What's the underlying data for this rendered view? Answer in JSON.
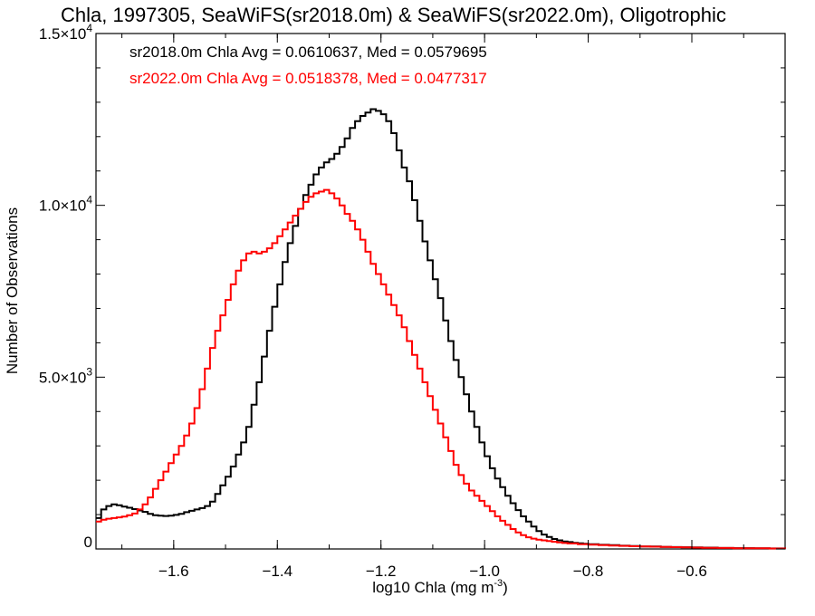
{
  "chart_data": {
    "type": "line",
    "title": "Chla, 1997305, SeaWiFS(sr2018.0m) & SeaWiFS(sr2022.0m), Oligotrophic",
    "xlabel": "log10 Chla (mg m",
    "xlabel_sup": "-3",
    "xlabel_tail": ")",
    "ylabel": "Number of Observations",
    "xlim": [
      -1.75,
      -0.42
    ],
    "ylim": [
      0,
      15000
    ],
    "grid": false,
    "x_ticks": [
      {
        "value": -1.6,
        "label": "−1.6"
      },
      {
        "value": -1.4,
        "label": "−1.4"
      },
      {
        "value": -1.2,
        "label": "−1.2"
      },
      {
        "value": -1.0,
        "label": "−1.0"
      },
      {
        "value": -0.8,
        "label": "−0.8"
      },
      {
        "value": -0.6,
        "label": "−0.6"
      }
    ],
    "y_ticks": [
      {
        "value": 0,
        "mant": "0",
        "exp": ""
      },
      {
        "value": 5000,
        "mant": "5.0×10",
        "exp": "3"
      },
      {
        "value": 10000,
        "mant": "1.0×10",
        "exp": "4"
      },
      {
        "value": 15000,
        "mant": "1.5×10",
        "exp": "4"
      }
    ],
    "annotations": [
      {
        "text": "sr2018.0m Chla Avg = 0.0610637, Med = 0.0579695",
        "color": "#000000"
      },
      {
        "text": "sr2022.0m Chla Avg = 0.0518378, Med = 0.0477317",
        "color": "#ff0000"
      }
    ],
    "series": [
      {
        "color": "#000000",
        "points": [
          [
            -1.75,
            900
          ],
          [
            -1.74,
            1150
          ],
          [
            -1.73,
            1250
          ],
          [
            -1.72,
            1300
          ],
          [
            -1.71,
            1270
          ],
          [
            -1.7,
            1230
          ],
          [
            -1.69,
            1200
          ],
          [
            -1.68,
            1160
          ],
          [
            -1.67,
            1120
          ],
          [
            -1.66,
            1080
          ],
          [
            -1.65,
            1020
          ],
          [
            -1.64,
            980
          ],
          [
            -1.63,
            970
          ],
          [
            -1.62,
            960
          ],
          [
            -1.61,
            970
          ],
          [
            -1.6,
            990
          ],
          [
            -1.59,
            1020
          ],
          [
            -1.58,
            1070
          ],
          [
            -1.57,
            1110
          ],
          [
            -1.56,
            1150
          ],
          [
            -1.55,
            1190
          ],
          [
            -1.54,
            1250
          ],
          [
            -1.53,
            1380
          ],
          [
            -1.52,
            1600
          ],
          [
            -1.51,
            1850
          ],
          [
            -1.5,
            2100
          ],
          [
            -1.49,
            2400
          ],
          [
            -1.48,
            2750
          ],
          [
            -1.47,
            3100
          ],
          [
            -1.46,
            3550
          ],
          [
            -1.45,
            4200
          ],
          [
            -1.44,
            4850
          ],
          [
            -1.43,
            5600
          ],
          [
            -1.42,
            6350
          ],
          [
            -1.41,
            7050
          ],
          [
            -1.4,
            7700
          ],
          [
            -1.39,
            8350
          ],
          [
            -1.38,
            8900
          ],
          [
            -1.37,
            9400
          ],
          [
            -1.36,
            9900
          ],
          [
            -1.35,
            10300
          ],
          [
            -1.34,
            10600
          ],
          [
            -1.33,
            10900
          ],
          [
            -1.32,
            11100
          ],
          [
            -1.31,
            11250
          ],
          [
            -1.3,
            11350
          ],
          [
            -1.29,
            11500
          ],
          [
            -1.28,
            11700
          ],
          [
            -1.27,
            11950
          ],
          [
            -1.26,
            12250
          ],
          [
            -1.25,
            12450
          ],
          [
            -1.24,
            12600
          ],
          [
            -1.23,
            12700
          ],
          [
            -1.22,
            12800
          ],
          [
            -1.21,
            12750
          ],
          [
            -1.2,
            12650
          ],
          [
            -1.19,
            12450
          ],
          [
            -1.18,
            12100
          ],
          [
            -1.17,
            11600
          ],
          [
            -1.16,
            11100
          ],
          [
            -1.15,
            10700
          ],
          [
            -1.14,
            10150
          ],
          [
            -1.13,
            9550
          ],
          [
            -1.12,
            8950
          ],
          [
            -1.11,
            8400
          ],
          [
            -1.1,
            7850
          ],
          [
            -1.09,
            7300
          ],
          [
            -1.08,
            6650
          ],
          [
            -1.07,
            6050
          ],
          [
            -1.06,
            5500
          ],
          [
            -1.05,
            5000
          ],
          [
            -1.04,
            4500
          ],
          [
            -1.03,
            4000
          ],
          [
            -1.02,
            3550
          ],
          [
            -1.01,
            3100
          ],
          [
            -1.0,
            2700
          ],
          [
            -0.99,
            2350
          ],
          [
            -0.98,
            2050
          ],
          [
            -0.97,
            1800
          ],
          [
            -0.96,
            1550
          ],
          [
            -0.95,
            1330
          ],
          [
            -0.94,
            1130
          ],
          [
            -0.93,
            950
          ],
          [
            -0.92,
            800
          ],
          [
            -0.91,
            650
          ],
          [
            -0.9,
            520
          ],
          [
            -0.89,
            420
          ],
          [
            -0.88,
            350
          ],
          [
            -0.87,
            290
          ],
          [
            -0.86,
            250
          ],
          [
            -0.85,
            220
          ],
          [
            -0.84,
            200
          ],
          [
            -0.83,
            180
          ],
          [
            -0.82,
            165
          ],
          [
            -0.81,
            150
          ],
          [
            -0.8,
            140
          ],
          [
            -0.78,
            120
          ],
          [
            -0.76,
            110
          ],
          [
            -0.74,
            95
          ],
          [
            -0.72,
            85
          ],
          [
            -0.7,
            75
          ],
          [
            -0.68,
            70
          ],
          [
            -0.66,
            60
          ],
          [
            -0.64,
            55
          ],
          [
            -0.62,
            50
          ],
          [
            -0.6,
            45
          ],
          [
            -0.58,
            40
          ],
          [
            -0.55,
            30
          ],
          [
            -0.52,
            25
          ],
          [
            -0.48,
            20
          ],
          [
            -0.45,
            15
          ],
          [
            -0.42,
            10
          ]
        ]
      },
      {
        "color": "#ff0000",
        "points": [
          [
            -1.75,
            800
          ],
          [
            -1.74,
            850
          ],
          [
            -1.73,
            880
          ],
          [
            -1.72,
            900
          ],
          [
            -1.71,
            920
          ],
          [
            -1.7,
            940
          ],
          [
            -1.69,
            980
          ],
          [
            -1.68,
            1030
          ],
          [
            -1.67,
            1150
          ],
          [
            -1.66,
            1300
          ],
          [
            -1.65,
            1500
          ],
          [
            -1.64,
            1750
          ],
          [
            -1.63,
            2000
          ],
          [
            -1.62,
            2250
          ],
          [
            -1.61,
            2500
          ],
          [
            -1.6,
            2750
          ],
          [
            -1.59,
            3000
          ],
          [
            -1.58,
            3300
          ],
          [
            -1.57,
            3650
          ],
          [
            -1.56,
            4100
          ],
          [
            -1.55,
            4650
          ],
          [
            -1.54,
            5250
          ],
          [
            -1.53,
            5850
          ],
          [
            -1.52,
            6350
          ],
          [
            -1.51,
            6800
          ],
          [
            -1.5,
            7250
          ],
          [
            -1.49,
            7700
          ],
          [
            -1.48,
            8100
          ],
          [
            -1.47,
            8400
          ],
          [
            -1.46,
            8600
          ],
          [
            -1.45,
            8650
          ],
          [
            -1.44,
            8600
          ],
          [
            -1.43,
            8650
          ],
          [
            -1.42,
            8750
          ],
          [
            -1.41,
            8900
          ],
          [
            -1.4,
            9100
          ],
          [
            -1.39,
            9300
          ],
          [
            -1.38,
            9500
          ],
          [
            -1.37,
            9700
          ],
          [
            -1.36,
            9900
          ],
          [
            -1.35,
            10100
          ],
          [
            -1.34,
            10250
          ],
          [
            -1.33,
            10350
          ],
          [
            -1.32,
            10400
          ],
          [
            -1.31,
            10450
          ],
          [
            -1.3,
            10350
          ],
          [
            -1.29,
            10200
          ],
          [
            -1.28,
            10000
          ],
          [
            -1.27,
            9750
          ],
          [
            -1.26,
            9550
          ],
          [
            -1.25,
            9300
          ],
          [
            -1.24,
            9000
          ],
          [
            -1.23,
            8650
          ],
          [
            -1.22,
            8300
          ],
          [
            -1.21,
            8000
          ],
          [
            -1.2,
            7700
          ],
          [
            -1.19,
            7400
          ],
          [
            -1.18,
            7100
          ],
          [
            -1.17,
            6800
          ],
          [
            -1.16,
            6450
          ],
          [
            -1.15,
            6050
          ],
          [
            -1.14,
            5650
          ],
          [
            -1.13,
            5250
          ],
          [
            -1.12,
            4850
          ],
          [
            -1.11,
            4450
          ],
          [
            -1.1,
            4050
          ],
          [
            -1.09,
            3650
          ],
          [
            -1.08,
            3250
          ],
          [
            -1.07,
            2850
          ],
          [
            -1.06,
            2450
          ],
          [
            -1.05,
            2150
          ],
          [
            -1.04,
            1900
          ],
          [
            -1.03,
            1700
          ],
          [
            -1.02,
            1550
          ],
          [
            -1.01,
            1400
          ],
          [
            -1.0,
            1250
          ],
          [
            -0.99,
            1100
          ],
          [
            -0.98,
            950
          ],
          [
            -0.97,
            820
          ],
          [
            -0.96,
            700
          ],
          [
            -0.95,
            580
          ],
          [
            -0.94,
            480
          ],
          [
            -0.93,
            400
          ],
          [
            -0.92,
            340
          ],
          [
            -0.91,
            300
          ],
          [
            -0.9,
            270
          ],
          [
            -0.89,
            250
          ],
          [
            -0.88,
            230
          ],
          [
            -0.87,
            210
          ],
          [
            -0.86,
            190
          ],
          [
            -0.85,
            175
          ],
          [
            -0.84,
            160
          ],
          [
            -0.82,
            140
          ],
          [
            -0.8,
            125
          ],
          [
            -0.78,
            110
          ],
          [
            -0.76,
            100
          ],
          [
            -0.74,
            90
          ],
          [
            -0.72,
            80
          ],
          [
            -0.7,
            72
          ],
          [
            -0.68,
            65
          ],
          [
            -0.66,
            58
          ],
          [
            -0.64,
            52
          ],
          [
            -0.62,
            46
          ],
          [
            -0.6,
            40
          ],
          [
            -0.58,
            35
          ],
          [
            -0.55,
            28
          ],
          [
            -0.52,
            22
          ],
          [
            -0.48,
            18
          ],
          [
            -0.45,
            13
          ],
          [
            -0.42,
            8
          ]
        ]
      }
    ]
  }
}
